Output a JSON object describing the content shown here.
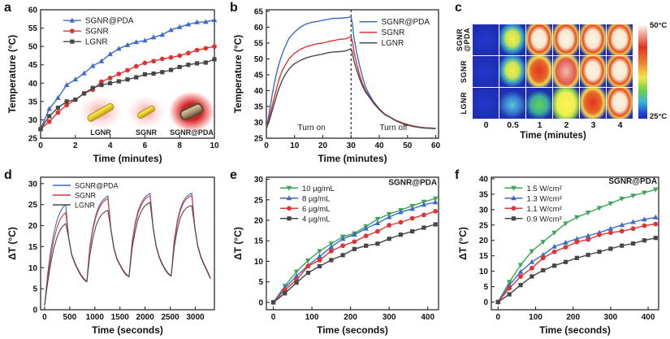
{
  "figure_title": "Photothermal performance of gold nanorods figure",
  "chart_data": [
    {
      "panel": "a",
      "id": "a",
      "type": "line",
      "xlabel": "Time (minutes)",
      "ylabel": "Temperature (°C)",
      "xlim": [
        0,
        10
      ],
      "ylim": [
        25,
        60
      ],
      "xticks": [
        0,
        2,
        4,
        6,
        8,
        10
      ],
      "yticks": [
        25,
        30,
        35,
        40,
        45,
        50,
        55,
        60
      ],
      "x": [
        0,
        0.5,
        1,
        1.5,
        2,
        2.5,
        3,
        3.5,
        4,
        4.5,
        5,
        5.5,
        6,
        6.5,
        7,
        7.5,
        8,
        8.5,
        9,
        9.5,
        10
      ],
      "series": [
        {
          "name": "SGNR@PDA",
          "color": "#3b6cc7",
          "marker": "triangle-up",
          "values": [
            27.5,
            33,
            36,
            39.5,
            41,
            42.7,
            44.7,
            46,
            47.9,
            49.4,
            50.4,
            51.2,
            51.6,
            52.5,
            53.2,
            54.5,
            55.3,
            56,
            56.6,
            56.7,
            57.2
          ]
        },
        {
          "name": "SGNR",
          "color": "#e03434",
          "marker": "circle",
          "values": [
            27.5,
            29.5,
            32,
            34,
            35.5,
            37.2,
            38.2,
            40.4,
            41.4,
            42.5,
            43.5,
            44.6,
            45.5,
            46,
            46.6,
            47,
            47.5,
            48.2,
            49,
            49.5,
            50
          ]
        },
        {
          "name": "LGNR",
          "color": "#474747",
          "marker": "square",
          "values": [
            27.5,
            31,
            33.3,
            35,
            35.5,
            37.2,
            38.7,
            39.5,
            40,
            40.5,
            41,
            41.6,
            42.4,
            42.6,
            43,
            43.6,
            44.4,
            45,
            45.4,
            45.6,
            46.5
          ]
        }
      ],
      "legend": {
        "x": 0.13,
        "y": 0.02,
        "font": 10
      },
      "inset": [
        {
          "label": "LGNR",
          "kind": "long-rod"
        },
        {
          "label": "SGNR",
          "kind": "short-rod"
        },
        {
          "label": "SGNR@PDA",
          "kind": "coated-rod"
        }
      ]
    },
    {
      "panel": "b",
      "id": "b",
      "type": "line",
      "xlabel": "Time (minutes)",
      "ylabel": "Temperature (°C)",
      "xlim": [
        0,
        61
      ],
      "ylim": [
        25,
        65.5
      ],
      "xticks": [
        0,
        10,
        20,
        30,
        40,
        50,
        60
      ],
      "yticks": [
        25,
        30,
        35,
        40,
        45,
        50,
        55,
        60,
        65
      ],
      "x": [
        0,
        1,
        2,
        3,
        4,
        5,
        6,
        7,
        8,
        9,
        10,
        12,
        14,
        16,
        18,
        20,
        22,
        24,
        26,
        28,
        30,
        30.5,
        31,
        32,
        33,
        34,
        35,
        36,
        38,
        40,
        42,
        44,
        46,
        48,
        50,
        52,
        54,
        56,
        58,
        60
      ],
      "series": [
        {
          "name": "SGNR@PDA",
          "color": "#3b6cc7",
          "marker": "none",
          "values": [
            28,
            33,
            38.5,
            43,
            47,
            50,
            52.5,
            54.5,
            56.5,
            57.5,
            58.5,
            60,
            61,
            61.5,
            61.8,
            62.2,
            62.5,
            62.8,
            62.8,
            63,
            63.2,
            61,
            57,
            52,
            48,
            44.5,
            41.5,
            39.5,
            36.5,
            34.3,
            32.5,
            31.5,
            30.5,
            29.8,
            29.2,
            28.8,
            28.5,
            28.3,
            28.2,
            28.1
          ]
        },
        {
          "name": "SGNR",
          "color": "#e03434",
          "marker": "none",
          "values": [
            28,
            31.5,
            35,
            38.5,
            42,
            45,
            47,
            48.5,
            50,
            51,
            51.8,
            53,
            53.8,
            54.3,
            54.8,
            55,
            55.5,
            55.8,
            56.2,
            56.3,
            57,
            55.5,
            52.5,
            48.5,
            45,
            42.3,
            40.3,
            38.8,
            36.2,
            34.2,
            32.6,
            31.6,
            30.6,
            29.9,
            29.3,
            28.9,
            28.5,
            28.3,
            28.2,
            28.1
          ]
        },
        {
          "name": "LGNR",
          "color": "#4a4a4a",
          "marker": "none",
          "values": [
            28,
            30.5,
            33.5,
            36.5,
            39.5,
            42,
            44,
            45.5,
            46.8,
            47.8,
            48.5,
            49.5,
            50.3,
            50.8,
            51.2,
            51.5,
            52,
            52.2,
            52.3,
            52.5,
            53.2,
            52,
            49.5,
            46.5,
            43.8,
            41.5,
            39.8,
            38.5,
            36,
            34,
            32.4,
            31.5,
            30.4,
            29.7,
            29.1,
            28.7,
            28.4,
            28.2,
            28.1,
            28
          ]
        }
      ],
      "legend": {
        "x": 0.54,
        "y": 0.03,
        "font": 10
      },
      "vlines": [
        {
          "x": 30,
          "style": "dashed"
        }
      ],
      "annotations": [
        {
          "text": "Turn on",
          "x": 16,
          "y": 27.6,
          "anchor": "middle"
        },
        {
          "text": "Turn off",
          "x": 45,
          "y": 27.6,
          "anchor": "middle"
        }
      ]
    },
    {
      "panel": "c",
      "id": "c",
      "type": "heatmap",
      "xlabel": "Time (minutes)",
      "columns": [
        "0",
        "0.5",
        "1",
        "2",
        "3",
        "4"
      ],
      "rows": [
        {
          "label_lines": [
            "SGNR",
            "@PDA"
          ],
          "cells": [
            "cold",
            "warm-yellow",
            "hot-white",
            "hot-white",
            "hot-white",
            "hot-white"
          ]
        },
        {
          "label_lines": [
            "SGNR"
          ],
          "cells": [
            "cold",
            "warm-yellow",
            "hot-red",
            "hot-pink",
            "hot-white",
            "hot-white"
          ]
        },
        {
          "label_lines": [
            "LGNR"
          ],
          "cells": [
            "cold",
            "cool-cyan",
            "warm-green",
            "warm-yellow-full",
            "hot-red",
            "hot-white"
          ]
        }
      ],
      "palette": {
        "cold": "radial-gradient(ellipse 80% 70% at 50% 50%, #2238cf 0%, #1b2aa8 100%)",
        "cool-cyan": "radial-gradient(ellipse 55% 45% at 50% 55%, #56c8d6 0%, #3a7fd0 55%, #1e2fb0 100%)",
        "warm-green": "radial-gradient(ellipse 55% 48% at 50% 55%, #63d44e 0%, #3fae9a 58%, #1e2fb0 100%)",
        "warm-yellow": "radial-gradient(ellipse 56% 56% at 50% 46%, #f2ef55 0%, #c8e450 45%, #35a0c8 72%, #1e2fb0 100%)",
        "warm-yellow-full": "radial-gradient(ellipse 62% 68% at 50% 52%, #f6f351 0%, #f0ee52 55%, #8ecf4d 74%, #1e2fb0 100%)",
        "hot-red": "radial-gradient(ellipse 58% 62% at 50% 48%, #e03420 0%, #e8682a 55%, #f0d84e 74%, #1e2fb0 100%)",
        "hot-pink": "radial-gradient(ellipse 60% 66% at 50% 50%, #eebcae 0%, #e2584a 62%, #e8d44e 78%, #1e2fb0 100%)",
        "hot-white": "radial-gradient(ellipse 58% 64% at 50% 47%, #fdf4e6 0%, #f6e8ce 45%, #e64b22 68%, #f0c84a 79%, #1e2fb0 100%)"
      },
      "colorbar": {
        "top_label": "50°C",
        "bottom_label": "25°C",
        "stops": [
          "#ffffff 0%",
          "#f6b8b0 8%",
          "#e23420 24%",
          "#ef7e2c 40%",
          "#f0e84e 56%",
          "#6fcf48 70%",
          "#38b8d8 82%",
          "#2144d8 94%",
          "#182ea8 100%"
        ]
      }
    },
    {
      "panel": "d",
      "id": "d",
      "type": "line",
      "xlabel": "Time (seconds)",
      "ylabel": "ΔT (°C)",
      "xlim": [
        -80,
        3380
      ],
      "ylim": [
        0,
        31.5
      ],
      "xticks": [
        0,
        500,
        1000,
        1500,
        2000,
        2500,
        3000
      ],
      "yticks": [
        0,
        5,
        10,
        15,
        20,
        25,
        30
      ],
      "x": [
        0,
        60,
        120,
        180,
        240,
        300,
        360,
        420,
        480,
        540,
        600,
        660,
        720,
        780,
        840,
        900,
        960,
        1020,
        1080,
        1140,
        1200,
        1260,
        1320,
        1380,
        1440,
        1500,
        1560,
        1620,
        1680,
        1740,
        1800,
        1860,
        1920,
        1980,
        2040,
        2100,
        2160,
        2220,
        2280,
        2340,
        2400,
        2460,
        2520,
        2580,
        2640,
        2700,
        2760,
        2820,
        2880,
        2930,
        2990,
        3050,
        3110,
        3170,
        3230,
        3300
      ],
      "series": [
        {
          "name": "SGNR@PDA",
          "color": "#3b6cc7",
          "marker": "none",
          "values": [
            1,
            8.5,
            14,
            18,
            21,
            23,
            24.3,
            25,
            17,
            13,
            11,
            9.5,
            8.2,
            7.2,
            6.6,
            15,
            19.5,
            22.5,
            24.5,
            25.8,
            26.5,
            27.1,
            19,
            14.5,
            12,
            10.6,
            9.3,
            8.3,
            7.8,
            16,
            20.5,
            23.5,
            25.3,
            26.5,
            27.2,
            27.7,
            19.5,
            15,
            12.5,
            10.8,
            9.5,
            8.5,
            8,
            16.5,
            21,
            24,
            25.8,
            26.8,
            27.4,
            27.7,
            19.5,
            15,
            12.5,
            10.8,
            9.3,
            7.4
          ]
        },
        {
          "name": "SGNR",
          "color": "#e03434",
          "marker": "none",
          "values": [
            1,
            7.5,
            12.5,
            16.5,
            19.3,
            21.3,
            22.4,
            23.1,
            17.2,
            13.2,
            11.2,
            9.7,
            8.4,
            7.4,
            6.7,
            14.5,
            19,
            22,
            24,
            25.3,
            26,
            26.4,
            19.2,
            14.7,
            12.2,
            10.8,
            9.5,
            8.5,
            7.9,
            15.5,
            20,
            23,
            24.8,
            26,
            26.7,
            27.1,
            19.7,
            15.2,
            12.7,
            11,
            9.7,
            8.7,
            8.1,
            16,
            20.5,
            23.5,
            25.3,
            26.3,
            26.9,
            27.1,
            19.7,
            15.2,
            12.7,
            11,
            9.5,
            7.6
          ]
        },
        {
          "name": "LGNR",
          "color": "#4a4a4a",
          "marker": "none",
          "values": [
            1,
            6.5,
            11,
            14.5,
            17,
            18.8,
            19.8,
            20.5,
            17,
            13,
            11,
            9.5,
            8.2,
            7.2,
            6.6,
            13,
            17,
            19.8,
            21.6,
            22.7,
            23.3,
            23.6,
            19,
            14.5,
            12,
            10.6,
            9.3,
            8.3,
            7.8,
            14.5,
            18.5,
            21.5,
            23.3,
            24.5,
            25.1,
            25.5,
            19.5,
            15,
            12.5,
            10.8,
            9.5,
            8.5,
            8,
            14.8,
            19,
            21.8,
            23.3,
            24.2,
            24.6,
            24.7,
            19.5,
            15,
            12.5,
            10.8,
            9.3,
            7.4
          ]
        }
      ],
      "legend": {
        "x": 0.07,
        "y": 0.0,
        "font": 9
      }
    },
    {
      "panel": "e",
      "id": "e",
      "type": "line",
      "xlabel": "Time (seconds)",
      "ylabel": "ΔT (°C)",
      "xlim": [
        -18,
        428
      ],
      "ylim": [
        -1.8,
        30.5
      ],
      "xticks": [
        0,
        100,
        200,
        300,
        400
      ],
      "yticks": [
        0,
        5,
        10,
        15,
        20,
        25,
        30
      ],
      "x": [
        0,
        30,
        60,
        90,
        120,
        150,
        180,
        210,
        240,
        270,
        300,
        330,
        360,
        390,
        420
      ],
      "series": [
        {
          "name": "10 µg/mL",
          "color": "#3da45a",
          "marker": "triangle-down",
          "values": [
            0,
            4,
            7.5,
            10.2,
            12.5,
            14.3,
            16,
            16.8,
            18.5,
            20.3,
            21.5,
            22.5,
            23.5,
            24.5,
            25.3
          ]
        },
        {
          "name": "8 µg/mL",
          "color": "#3b6cc7",
          "marker": "triangle-up",
          "values": [
            0,
            3.5,
            6.4,
            9,
            11.2,
            13.5,
            15.5,
            16.5,
            18,
            19.3,
            20.8,
            22,
            22.8,
            23.8,
            24.4
          ]
        },
        {
          "name": "6 µg/mL",
          "color": "#e03434",
          "marker": "circle",
          "values": [
            0,
            3,
            5.5,
            8.8,
            10.3,
            12.5,
            13.8,
            14.8,
            16.2,
            17.3,
            18.8,
            19.5,
            20.5,
            21.3,
            22.2
          ]
        },
        {
          "name": "4 µg/mL",
          "color": "#474747",
          "marker": "square",
          "values": [
            0,
            2.2,
            4.8,
            7.2,
            8.8,
            10.3,
            11.5,
            13,
            13.8,
            14.3,
            15.5,
            16.5,
            17.3,
            18.2,
            19
          ]
        }
      ],
      "legend": {
        "x": 0.08,
        "y": 0.02,
        "font": 9.5
      },
      "annotations": [
        {
          "text": "SGNR@PDA",
          "x": 424,
          "y": 28.6,
          "anchor": "end",
          "bold": true
        }
      ]
    },
    {
      "panel": "f",
      "id": "f",
      "type": "line",
      "xlabel": "Time (seconds)",
      "ylabel": "ΔT (°C)",
      "xlim": [
        -18,
        428
      ],
      "ylim": [
        -2.5,
        40.5
      ],
      "xticks": [
        0,
        100,
        200,
        300,
        400
      ],
      "yticks": [
        0,
        5,
        10,
        15,
        20,
        25,
        30,
        35,
        40
      ],
      "x": [
        0,
        30,
        60,
        90,
        120,
        150,
        180,
        210,
        240,
        270,
        300,
        330,
        360,
        390,
        420
      ],
      "series": [
        {
          "name": "1.5 W/cm²",
          "color": "#3da45a",
          "marker": "triangle-down",
          "values": [
            0,
            6.5,
            12,
            16.5,
            19.5,
            22.5,
            25.5,
            27.5,
            29,
            30.5,
            32,
            33.5,
            34.5,
            35.5,
            36.5
          ]
        },
        {
          "name": "1.3 W/cm²",
          "color": "#3b6cc7",
          "marker": "triangle-up",
          "values": [
            0,
            5.5,
            9.8,
            13,
            15.3,
            18,
            19.3,
            20.5,
            21.5,
            22.5,
            23.8,
            25,
            26,
            26.8,
            27.5
          ]
        },
        {
          "name": "1.1 W/cm²",
          "color": "#e03434",
          "marker": "circle",
          "values": [
            0,
            4.5,
            8.3,
            11,
            14.3,
            16.3,
            17.8,
            19.5,
            20.3,
            21.8,
            22.5,
            23,
            23.8,
            24.8,
            25.3
          ]
        },
        {
          "name": "0.9 W/cm²",
          "color": "#474747",
          "marker": "square",
          "values": [
            0,
            2.5,
            5.5,
            8.3,
            10.3,
            11.8,
            13,
            14.3,
            15.3,
            16.3,
            17.3,
            18.3,
            19,
            20,
            20.8
          ]
        }
      ],
      "legend": {
        "x": 0.08,
        "y": 0.02,
        "font": 9.5
      },
      "annotations": [
        {
          "text": "SGNR@PDA",
          "x": 424,
          "y": 38.4,
          "anchor": "end",
          "bold": true
        }
      ]
    }
  ]
}
